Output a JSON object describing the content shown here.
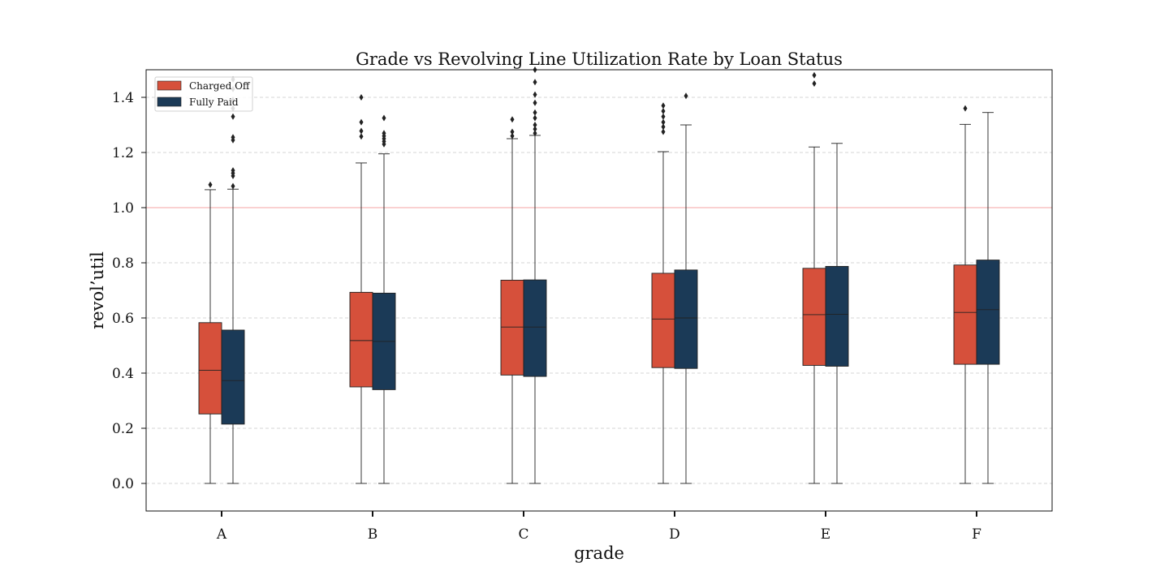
{
  "chart_data": {
    "type": "box",
    "title": "Grade vs Revolving Line Utilization Rate by Loan Status",
    "xlabel": "grade",
    "ylabel": "revol’util",
    "categories": [
      "A",
      "B",
      "C",
      "D",
      "E",
      "F"
    ],
    "ylim": [
      -0.1,
      1.5
    ],
    "yticks": [
      0.0,
      0.2,
      0.4,
      0.6,
      0.8,
      1.0,
      1.2,
      1.4
    ],
    "ytick_labels": [
      "0.0",
      "0.2",
      "0.4",
      "0.6",
      "0.8",
      "1.0",
      "1.2",
      "1.4"
    ],
    "grid": "horizontal dashed",
    "reference_line": {
      "y": 1.0,
      "color": "#f4a3a3"
    },
    "legend": {
      "placement": "top-left",
      "entries": [
        "Charged Off",
        "Fully Paid"
      ]
    },
    "series": [
      {
        "name": "Charged Off",
        "color": "#d6503b",
        "boxes": [
          {
            "min": 0.0,
            "q1": 0.252,
            "median": 0.41,
            "q3": 0.583,
            "max": 1.065,
            "outliers": [
              1.083
            ]
          },
          {
            "min": 0.0,
            "q1": 0.35,
            "median": 0.518,
            "q3": 0.693,
            "max": 1.162,
            "outliers": [
              1.258,
              1.278,
              1.31,
              1.4
            ]
          },
          {
            "min": 0.0,
            "q1": 0.393,
            "median": 0.567,
            "q3": 0.737,
            "max": 1.25,
            "outliers": [
              1.26,
              1.275,
              1.32
            ]
          },
          {
            "min": 0.0,
            "q1": 0.42,
            "median": 0.596,
            "q3": 0.762,
            "max": 1.203,
            "outliers": [
              1.275,
              1.293,
              1.31,
              1.33,
              1.35,
              1.37
            ]
          },
          {
            "min": 0.0,
            "q1": 0.428,
            "median": 0.612,
            "q3": 0.78,
            "max": 1.22,
            "outliers": [
              1.45,
              1.48
            ]
          },
          {
            "min": 0.0,
            "q1": 0.432,
            "median": 0.62,
            "q3": 0.792,
            "max": 1.302,
            "outliers": [
              1.36
            ]
          }
        ]
      },
      {
        "name": "Fully Paid",
        "color": "#1b3a57",
        "boxes": [
          {
            "min": 0.0,
            "q1": 0.215,
            "median": 0.373,
            "q3": 0.556,
            "max": 1.067,
            "outliers": [
              1.078,
              1.115,
              1.125,
              1.135,
              1.245,
              1.255,
              1.33,
              1.36,
              1.39,
              1.43,
              1.465
            ]
          },
          {
            "min": 0.0,
            "q1": 0.34,
            "median": 0.515,
            "q3": 0.69,
            "max": 1.195,
            "outliers": [
              1.23,
              1.24,
              1.25,
              1.26,
              1.27,
              1.325
            ]
          },
          {
            "min": 0.0,
            "q1": 0.388,
            "median": 0.567,
            "q3": 0.738,
            "max": 1.262,
            "outliers": [
              1.27,
              1.285,
              1.3,
              1.325,
              1.345,
              1.38,
              1.41,
              1.455,
              1.5
            ]
          },
          {
            "min": 0.0,
            "q1": 0.417,
            "median": 0.6,
            "q3": 0.774,
            "max": 1.3,
            "outliers": [
              1.405
            ]
          },
          {
            "min": 0.0,
            "q1": 0.425,
            "median": 0.613,
            "q3": 0.787,
            "max": 1.233,
            "outliers": []
          },
          {
            "min": 0.0,
            "q1": 0.432,
            "median": 0.63,
            "q3": 0.81,
            "max": 1.345,
            "outliers": []
          }
        ]
      }
    ]
  }
}
